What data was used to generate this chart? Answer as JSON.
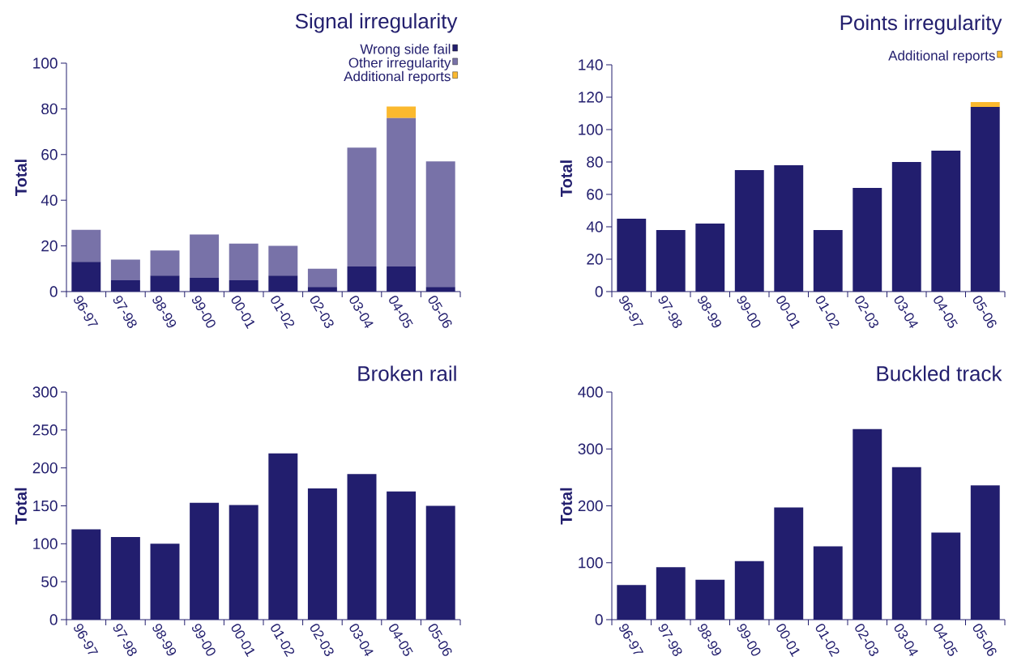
{
  "chart_data": [
    {
      "type": "bar",
      "title": "Signal irregularity",
      "ylabel": "Total",
      "stacked": true,
      "legend": "top right",
      "categories": [
        "96-97",
        "97-98",
        "98-99",
        "99-00",
        "00-01",
        "01-02",
        "02-03",
        "03-04",
        "04-05",
        "05-06"
      ],
      "ylim": [
        0,
        100
      ],
      "yticks": [
        0,
        20,
        40,
        60,
        80,
        100
      ],
      "series": [
        {
          "name": "Wrong side fail",
          "color": "#221e6e",
          "values": [
            13,
            5,
            7,
            6,
            5,
            7,
            2,
            11,
            11,
            2
          ]
        },
        {
          "name": "Other irregularity",
          "color": "#7872a8",
          "values": [
            14,
            9,
            11,
            19,
            16,
            13,
            8,
            52,
            65,
            55
          ]
        },
        {
          "name": "Additional reports",
          "color": "#fbb92e",
          "values": [
            null,
            null,
            null,
            null,
            null,
            null,
            null,
            null,
            5,
            null
          ]
        }
      ]
    },
    {
      "type": "bar",
      "title": "Points irregularity",
      "ylabel": "Total",
      "stacked": true,
      "legend": "top right",
      "categories": [
        "96-97",
        "97-98",
        "98-99",
        "99-00",
        "00-01",
        "01-02",
        "02-03",
        "03-04",
        "04-05",
        "05-06"
      ],
      "ylim": [
        0,
        140
      ],
      "yticks": [
        0,
        20,
        40,
        60,
        80,
        100,
        120,
        140
      ],
      "series": [
        {
          "color": "#221e6e",
          "values": [
            45,
            38,
            42,
            75,
            78,
            38,
            64,
            80,
            87,
            114
          ]
        },
        {
          "name": "Additional reports",
          "color": "#fbb92e",
          "values": [
            null,
            null,
            null,
            null,
            null,
            null,
            null,
            null,
            null,
            3
          ]
        }
      ]
    },
    {
      "type": "bar",
      "title": "Broken rail",
      "ylabel": "Total",
      "color": "#221e6e",
      "categories": [
        "96-97",
        "97-98",
        "98-99",
        "99-00",
        "00-01",
        "01-02",
        "02-03",
        "03-04",
        "04-05",
        "05-06"
      ],
      "ylim": [
        0,
        300
      ],
      "yticks": [
        0,
        50,
        100,
        150,
        200,
        250,
        300
      ],
      "values": [
        119,
        109,
        100,
        154,
        151,
        219,
        173,
        192,
        169,
        150
      ]
    },
    {
      "type": "bar",
      "title": "Buckled track",
      "ylabel": "Total",
      "color": "#221e6e",
      "categories": [
        "96-97",
        "97-98",
        "98-99",
        "99-00",
        "00-01",
        "01-02",
        "02-03",
        "03-04",
        "04-05",
        "05-06"
      ],
      "ylim": [
        0,
        400
      ],
      "yticks": [
        0,
        100,
        200,
        300,
        400
      ],
      "values": [
        61,
        92,
        70,
        103,
        197,
        129,
        335,
        268,
        153,
        236
      ]
    }
  ]
}
